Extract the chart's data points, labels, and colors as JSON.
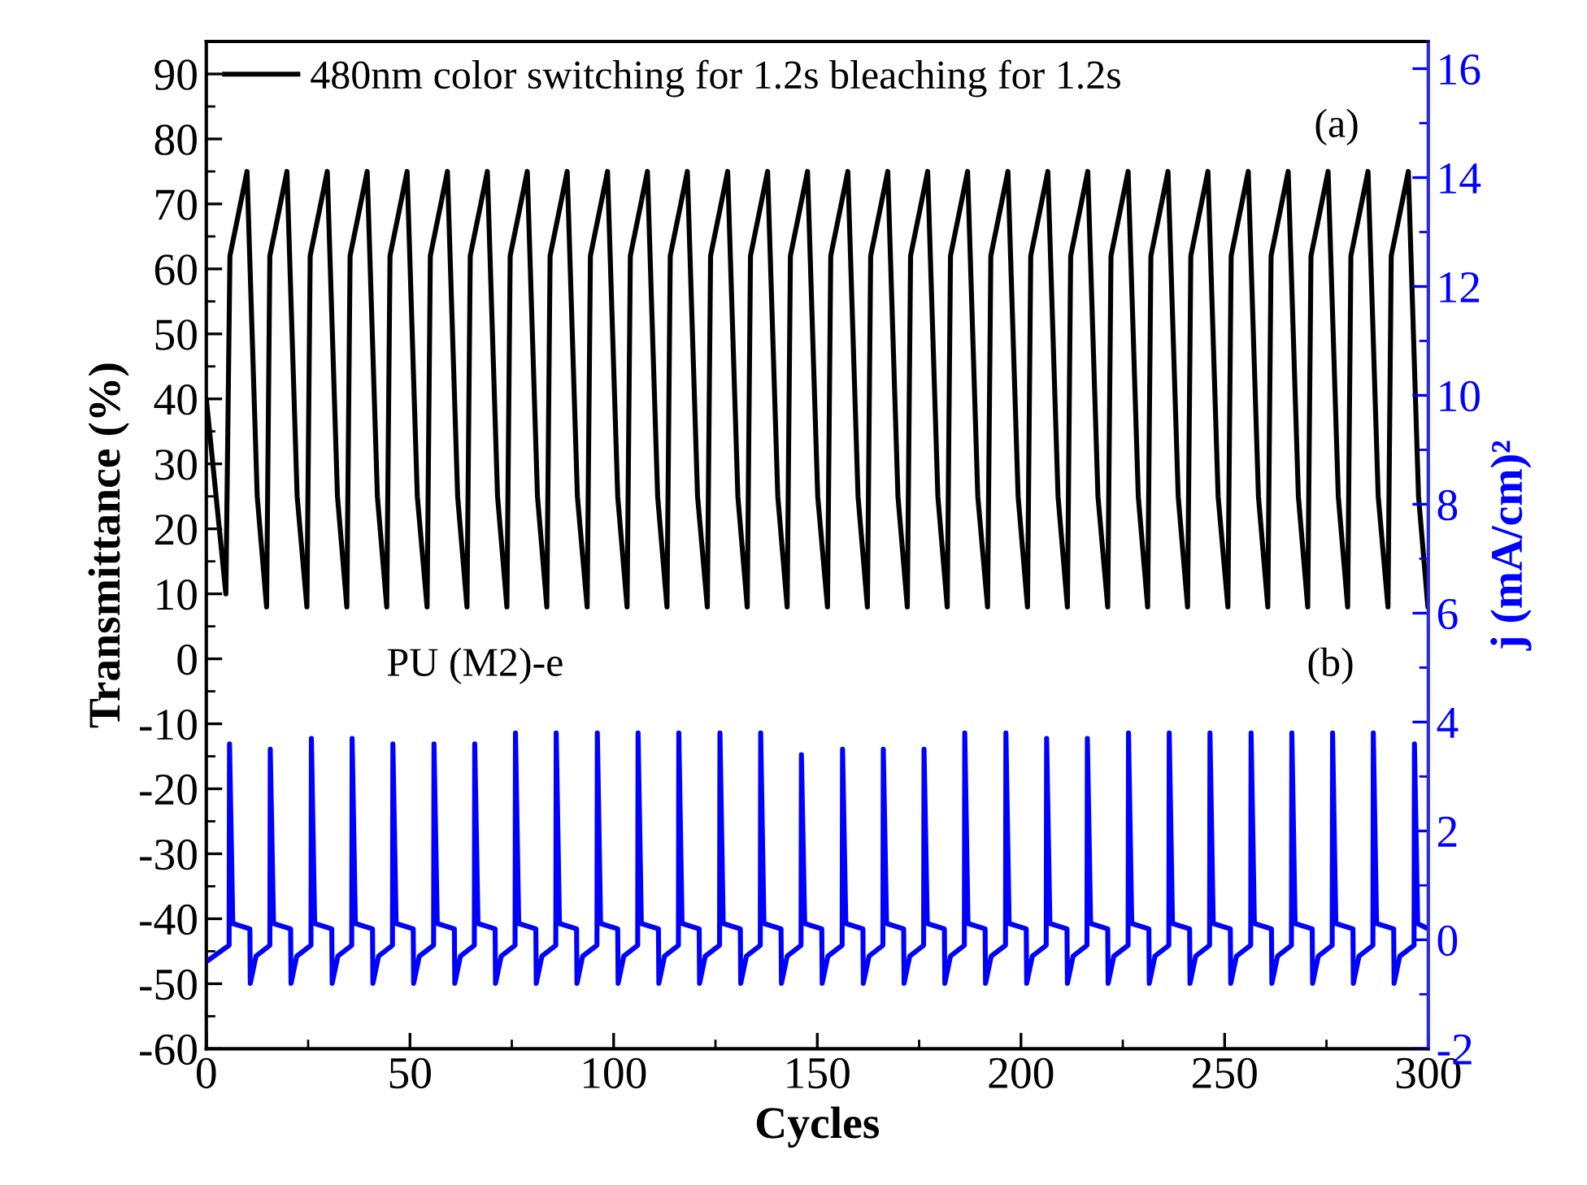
{
  "chart_data": {
    "type": "line",
    "xlabel": "Cycles",
    "ylabel": "Transmittance (%)",
    "y2label": "j (mA/cm)²",
    "xlim": [
      0,
      300
    ],
    "xticks": [
      0,
      50,
      100,
      150,
      200,
      250,
      300
    ],
    "ylim": [
      -60,
      95
    ],
    "yticks": [
      -60,
      -50,
      -40,
      -30,
      -20,
      -10,
      0,
      10,
      20,
      30,
      40,
      50,
      60,
      70,
      80,
      90
    ],
    "y2lim": [
      -2,
      16.5
    ],
    "y2ticks": [
      -2,
      0,
      2,
      4,
      6,
      8,
      10,
      12,
      14,
      16
    ],
    "legend": "top left",
    "grid": false,
    "marker": "none",
    "line_style": "solid",
    "annotations": [
      "(a)",
      "(b)",
      "PU (M2)-e"
    ],
    "series": [
      {
        "name": "480nm color switching for 1.2s bleaching for 1.2s",
        "color": "#000000",
        "x": [
          0,
          4.8,
          5.8,
          10,
          11,
          12.5,
          14.8,
          15.6,
          19.8,
          20.8,
          22.3,
          24.7,
          25.5,
          29.7,
          30.7,
          32.2,
          34.5,
          35.3,
          39.5,
          40.5,
          42.0,
          44.3,
          45.1,
          49.3,
          50.3,
          51.8,
          54.2,
          55.0,
          59.2,
          60.2,
          61.7,
          64.0,
          64.8,
          69.0,
          70.0,
          71.5,
          73.8,
          74.6,
          78.8,
          79.8,
          81.3,
          83.6,
          84.4,
          88.6,
          89.6,
          91.1,
          93.5,
          94.3,
          98.5,
          99.5,
          101.0,
          103.3,
          104.1,
          108.3,
          109.3,
          110.8,
          113.1,
          113.9,
          118.1,
          119.1,
          120.6,
          123.0,
          123.8,
          128.0,
          129.0,
          130.5,
          132.8,
          133.6,
          137.8,
          138.8,
          140.3,
          142.6,
          143.4,
          147.6,
          148.6,
          150.1,
          152.5,
          153.3,
          157.5,
          158.5,
          160.0,
          162.3,
          163.1,
          167.3,
          168.3,
          169.8,
          172.1,
          172.9,
          177.1,
          178.1,
          179.6,
          181.9,
          182.7,
          186.9,
          187.9,
          189.4,
          191.8,
          192.6,
          196.8,
          197.8,
          199.3,
          201.6,
          202.4,
          206.6,
          207.6,
          209.1,
          211.4,
          212.2,
          216.4,
          217.4,
          218.9,
          221.3,
          222.1,
          226.3,
          227.3,
          228.8,
          231.1,
          231.9,
          236.1,
          237.1,
          238.6,
          240.9,
          241.7,
          245.9,
          246.9,
          248.4,
          250.8,
          251.6,
          255.8,
          256.8,
          258.3,
          260.6,
          261.4,
          265.6,
          266.6,
          268.1,
          270.4,
          271.2,
          275.4,
          276.4,
          277.9,
          280.2,
          281.0,
          285.2,
          286.2,
          287.7,
          290.1,
          290.9,
          295.1,
          296.1,
          297.6,
          299.9
        ],
        "values": [
          40,
          10,
          62,
          75,
          55,
          25,
          8,
          62,
          75,
          55,
          25,
          8,
          62,
          75,
          55,
          25,
          8,
          62,
          75,
          55,
          25,
          8,
          62,
          75,
          55,
          25,
          8,
          62,
          75,
          55,
          25,
          8,
          62,
          75,
          55,
          25,
          8,
          62,
          75,
          55,
          25,
          8,
          62,
          75,
          55,
          25,
          8,
          62,
          75,
          55,
          25,
          8,
          62,
          75,
          55,
          25,
          8,
          62,
          75,
          55,
          25,
          8,
          62,
          75,
          55,
          25,
          8,
          62,
          75,
          55,
          25,
          8,
          62,
          75,
          55,
          25,
          8,
          62,
          75,
          55,
          25,
          8,
          62,
          75,
          55,
          25,
          8,
          62,
          75,
          55,
          25,
          8,
          62,
          75,
          55,
          25,
          8,
          62,
          75,
          55,
          25,
          8,
          62,
          75,
          55,
          25,
          8,
          62,
          75,
          55,
          25,
          8,
          62,
          75,
          55,
          25,
          8,
          62,
          75,
          55,
          25,
          8,
          62,
          75,
          55,
          25,
          8,
          62,
          75,
          55,
          25,
          8,
          62,
          75,
          55,
          25,
          8,
          62,
          75,
          55,
          25,
          8,
          62,
          75,
          55,
          25,
          8,
          62,
          75,
          55,
          25,
          8
        ]
      },
      {
        "color": "#0000ff",
        "axis": "y2",
        "x": [
          0,
          5.6,
          5.7,
          6.5,
          10.7,
          10.8,
          12.2,
          15.6,
          15.7,
          16.5,
          20.7,
          20.8,
          22.2,
          25.7,
          25.8,
          26.6,
          30.8,
          30.9,
          32.3,
          35.7,
          35.8,
          36.6,
          40.8,
          40.9,
          42.3,
          45.7,
          45.8,
          46.6,
          50.8,
          50.9,
          52.3,
          55.8,
          55.9,
          56.7,
          60.9,
          61.0,
          62.4,
          65.8,
          65.9,
          66.7,
          70.9,
          71.0,
          72.4,
          75.8,
          75.9,
          76.7,
          80.9,
          81.0,
          82.4,
          85.8,
          85.9,
          86.7,
          90.9,
          91.0,
          92.4,
          95.9,
          96.0,
          96.8,
          101.0,
          101.1,
          102.5,
          105.9,
          106.0,
          106.8,
          111.0,
          111.1,
          112.5,
          115.9,
          116.0,
          116.8,
          121.0,
          121.1,
          122.5,
          126.0,
          126.1,
          126.9,
          131.1,
          131.2,
          132.6,
          136.0,
          136.1,
          136.9,
          141.1,
          141.2,
          142.6,
          146.0,
          146.1,
          146.9,
          151.1,
          151.2,
          152.6,
          156.1,
          156.2,
          157.0,
          161.2,
          161.3,
          162.7,
          166.1,
          166.2,
          167.0,
          171.2,
          171.3,
          172.7,
          176.1,
          176.2,
          177.0,
          181.2,
          181.3,
          182.7,
          186.1,
          186.2,
          187.0,
          191.2,
          191.3,
          192.7,
          196.2,
          196.3,
          197.1,
          201.3,
          201.4,
          202.8,
          206.2,
          206.3,
          207.1,
          211.3,
          211.4,
          212.8,
          216.2,
          216.3,
          217.1,
          221.3,
          221.4,
          222.8,
          226.3,
          226.4,
          227.2,
          231.4,
          231.5,
          232.9,
          236.3,
          236.4,
          237.2,
          241.4,
          241.5,
          242.9,
          246.3,
          246.4,
          247.2,
          251.4,
          251.5,
          252.9,
          256.4,
          256.5,
          257.3,
          261.5,
          261.6,
          263.0,
          266.4,
          266.5,
          267.3,
          271.5,
          271.6,
          273.0,
          276.4,
          276.5,
          277.3,
          281.5,
          281.6,
          283.0,
          286.4,
          286.5,
          287.3,
          291.5,
          291.6,
          293.0,
          296.5,
          296.6,
          297.4,
          300
        ],
        "values": [
          -0.4,
          -0.1,
          3.6,
          0.3,
          0.2,
          -0.8,
          -0.3,
          -0.1,
          3.5,
          0.3,
          0.2,
          -0.8,
          -0.3,
          -0.1,
          3.7,
          0.3,
          0.2,
          -0.8,
          -0.3,
          -0.1,
          3.7,
          0.3,
          0.2,
          -0.8,
          -0.3,
          -0.1,
          3.6,
          0.3,
          0.2,
          -0.8,
          -0.3,
          -0.1,
          3.6,
          0.3,
          0.2,
          -0.8,
          -0.3,
          -0.1,
          3.6,
          0.3,
          0.2,
          -0.8,
          -0.3,
          -0.1,
          3.8,
          0.3,
          0.2,
          -0.8,
          -0.3,
          -0.1,
          3.8,
          0.3,
          0.2,
          -0.8,
          -0.3,
          -0.1,
          3.8,
          0.3,
          0.2,
          -0.8,
          -0.3,
          -0.1,
          3.8,
          0.3,
          0.2,
          -0.8,
          -0.3,
          -0.1,
          3.8,
          0.3,
          0.2,
          -0.8,
          -0.3,
          -0.1,
          3.8,
          0.3,
          0.2,
          -0.8,
          -0.3,
          -0.1,
          3.8,
          0.3,
          0.2,
          -0.8,
          -0.3,
          -0.1,
          3.4,
          0.3,
          0.2,
          -0.8,
          -0.3,
          -0.1,
          3.5,
          0.3,
          0.2,
          -0.8,
          -0.3,
          -0.1,
          3.5,
          0.3,
          0.2,
          -0.8,
          -0.3,
          -0.1,
          3.5,
          0.3,
          0.2,
          -0.8,
          -0.3,
          -0.1,
          3.8,
          0.3,
          0.2,
          -0.8,
          -0.3,
          -0.1,
          3.8,
          0.3,
          0.2,
          -0.8,
          -0.3,
          -0.1,
          3.7,
          0.3,
          0.2,
          -0.8,
          -0.3,
          -0.1,
          3.7,
          0.3,
          0.2,
          -0.8,
          -0.3,
          -0.1,
          3.8,
          0.3,
          0.2,
          -0.8,
          -0.3,
          -0.1,
          3.8,
          0.3,
          0.2,
          -0.8,
          -0.3,
          -0.1,
          3.8,
          0.3,
          0.2,
          -0.8,
          -0.3,
          -0.1,
          3.8,
          0.3,
          0.2,
          -0.8,
          -0.3,
          -0.1,
          3.8,
          0.3,
          0.2,
          -0.8,
          -0.3,
          -0.1,
          3.8,
          0.3,
          0.2,
          -0.8,
          -0.3,
          -0.1,
          3.8,
          0.3,
          0.2,
          -0.8,
          -0.3,
          -0.1,
          3.6,
          0.3,
          0.2
        ]
      }
    ]
  }
}
